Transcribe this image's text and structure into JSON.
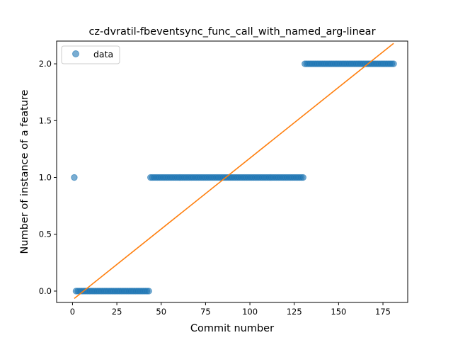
{
  "chart_data": {
    "type": "scatter",
    "title": "cz-dvratil-fbeventsync_func_call_with_named_arg-linear",
    "xlabel": "Commit number",
    "ylabel": "Number of instance of a feature",
    "xlim": [
      -8.95,
      188.95
    ],
    "ylim": [
      -0.1,
      2.2
    ],
    "xticks": [
      0,
      25,
      50,
      75,
      100,
      125,
      150,
      175
    ],
    "yticks": [
      0.0,
      0.5,
      1.0,
      1.5,
      2.0
    ],
    "xtick_labels": [
      "0",
      "25",
      "50",
      "75",
      "100",
      "125",
      "150",
      "175"
    ],
    "ytick_labels": [
      "0.0",
      "0.5",
      "1.0",
      "1.5",
      "2.0"
    ],
    "grid": false,
    "legend": {
      "position": "top-left",
      "entries": [
        "data"
      ]
    },
    "series": [
      {
        "name": "data",
        "kind": "points",
        "color": "#1f77b4",
        "segments": [
          {
            "x_start": 1,
            "x_end": 1,
            "y": 1
          },
          {
            "x_start": 2,
            "x_end": 43,
            "y": 0
          },
          {
            "x_start": 44,
            "x_end": 130,
            "y": 1
          },
          {
            "x_start": 131,
            "x_end": 181,
            "y": 2
          }
        ]
      },
      {
        "kind": "line",
        "color": "#ff7f0e",
        "x": [
          1,
          181
        ],
        "y": [
          -0.065,
          2.18
        ]
      }
    ]
  }
}
